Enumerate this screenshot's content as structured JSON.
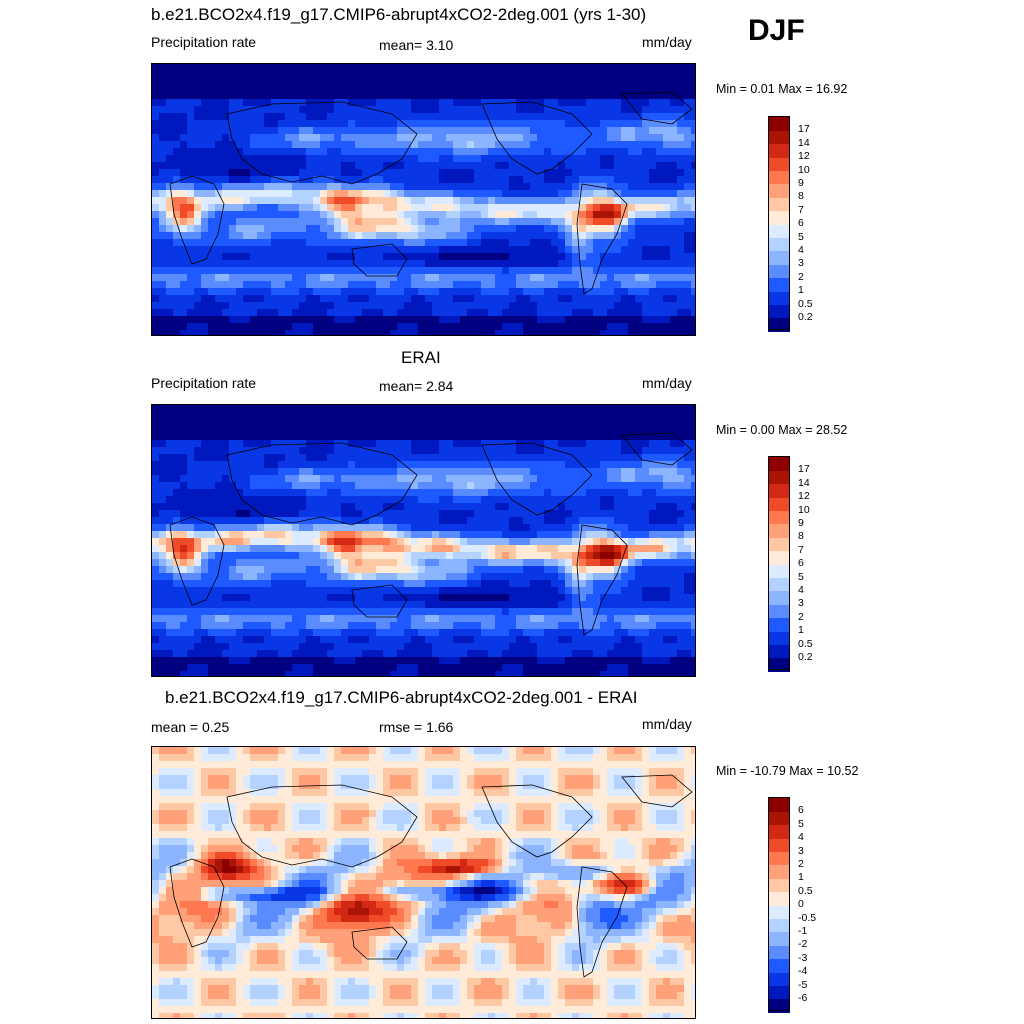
{
  "season": "DJF",
  "panels": [
    {
      "id": "model",
      "title": "b.e21.BCO2x4.f19_g17.CMIP6-abrupt4xCO2-2deg.001 (yrs 1-30)",
      "left_label": "Precipitation rate",
      "center_label": "mean=   3.10",
      "units": "mm/day",
      "minmax": "Min =   0.01 Max =  16.92",
      "colorbar": {
        "colors": [
          "#000080",
          "#0019be",
          "#0a37e6",
          "#1e5aff",
          "#5a8cff",
          "#8cb4ff",
          "#b4d2ff",
          "#dcebff",
          "#ffebd7",
          "#ffc8a5",
          "#ffa078",
          "#ff7850",
          "#f04b28",
          "#d22814",
          "#aa1405",
          "#8c0000"
        ],
        "labels": [
          "0.2",
          "0.5",
          "1",
          "2",
          "3",
          "4",
          "5",
          "6",
          "7",
          "8",
          "9",
          "10",
          "12",
          "14",
          "17"
        ]
      },
      "legend_swatches": [
        "0.2",
        "0.5",
        "1",
        "2",
        "3",
        "4",
        "5",
        "6",
        "7",
        "8",
        "9",
        "10",
        "12",
        "14",
        "17",
        "17+"
      ]
    },
    {
      "id": "obs",
      "title": "ERAI",
      "left_label": "Precipitation rate",
      "center_label": "mean=   2.84",
      "units": "mm/day",
      "minmax": "Min =   0.00 Max =  28.52",
      "colorbar": {
        "colors": [
          "#000080",
          "#0019be",
          "#0a37e6",
          "#1e5aff",
          "#5a8cff",
          "#8cb4ff",
          "#b4d2ff",
          "#dcebff",
          "#ffebd7",
          "#ffc8a5",
          "#ffa078",
          "#ff7850",
          "#f04b28",
          "#d22814",
          "#aa1405",
          "#8c0000"
        ],
        "labels": [
          "0.2",
          "0.5",
          "1",
          "2",
          "3",
          "4",
          "5",
          "6",
          "7",
          "8",
          "9",
          "10",
          "12",
          "14",
          "17"
        ]
      }
    },
    {
      "id": "diff",
      "title": "b.e21.BCO2x4.f19_g17.CMIP6-abrupt4xCO2-2deg.001 - ERAI",
      "left_label": "mean =   0.25",
      "center_label": "rmse =   1.66",
      "units": "mm/day",
      "minmax": "Min = -10.79 Max =  10.52",
      "colorbar": {
        "colors": [
          "#000080",
          "#0019be",
          "#0a37e6",
          "#1e5aff",
          "#5a8cff",
          "#8cb4ff",
          "#b4d2ff",
          "#dcebff",
          "#ffebd7",
          "#ffc8a5",
          "#ffa078",
          "#ff7850",
          "#f04b28",
          "#d22814",
          "#aa1405",
          "#8c0000"
        ],
        "labels": [
          "-6",
          "-5",
          "-4",
          "-3",
          "-2",
          "-1",
          "-0.5",
          "0",
          "0.5",
          "1",
          "2",
          "3",
          "4",
          "5",
          "6"
        ]
      }
    }
  ]
}
